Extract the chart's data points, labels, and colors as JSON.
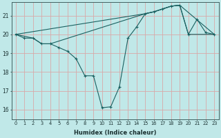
{
  "xlabel": "Humidex (Indice chaleur)",
  "bg_color": "#c0e8e8",
  "grid_color": "#d8a8a8",
  "line_color": "#1a6060",
  "xlim": [
    -0.5,
    23.5
  ],
  "ylim": [
    15.5,
    21.7
  ],
  "yticks": [
    16,
    17,
    18,
    19,
    20,
    21
  ],
  "xticks": [
    0,
    1,
    2,
    3,
    4,
    5,
    6,
    7,
    8,
    9,
    10,
    11,
    12,
    13,
    14,
    15,
    16,
    17,
    18,
    19,
    20,
    21,
    22,
    23
  ],
  "series": [
    {
      "x": [
        0,
        1,
        2,
        3,
        4,
        5,
        6,
        7,
        8,
        9,
        10,
        11,
        12,
        13,
        14,
        15,
        16,
        17,
        18,
        19,
        20,
        21,
        22,
        23
      ],
      "y": [
        20.0,
        19.8,
        19.8,
        19.5,
        19.5,
        19.3,
        19.1,
        18.7,
        17.8,
        17.8,
        16.1,
        16.15,
        17.2,
        19.8,
        20.4,
        21.1,
        21.2,
        21.35,
        21.5,
        21.55,
        20.0,
        20.8,
        20.1,
        20.0
      ]
    },
    {
      "x": [
        0,
        15,
        16,
        17,
        18,
        19,
        20,
        23
      ],
      "y": [
        20.0,
        21.1,
        21.2,
        21.35,
        21.5,
        21.55,
        20.0,
        20.0
      ]
    },
    {
      "x": [
        0,
        2,
        3,
        4,
        15,
        16,
        17,
        18,
        19,
        23
      ],
      "y": [
        20.0,
        19.8,
        19.5,
        19.5,
        21.1,
        21.2,
        21.35,
        21.5,
        21.55,
        20.0
      ]
    }
  ]
}
